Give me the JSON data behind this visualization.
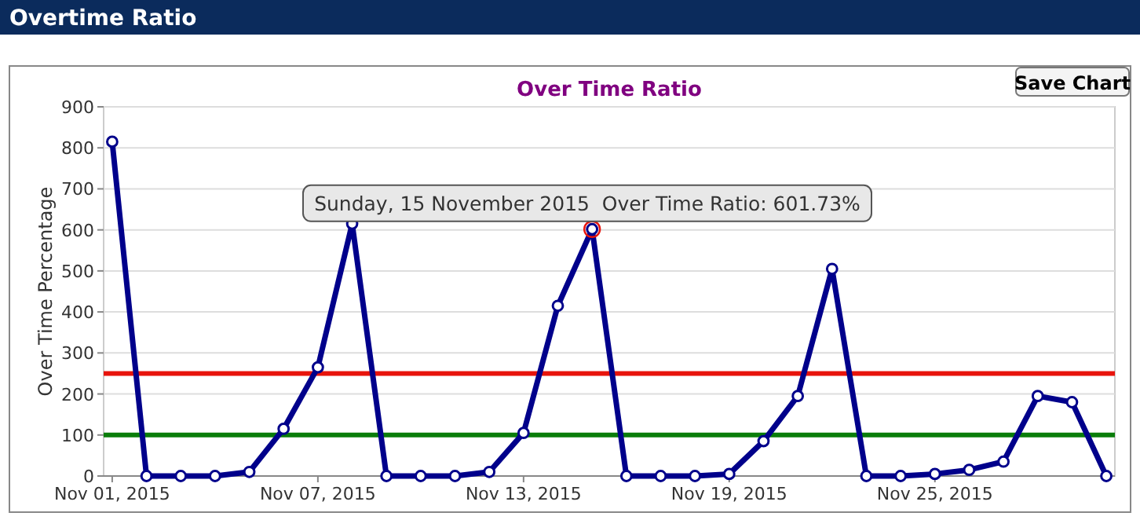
{
  "chart_data": {
    "type": "line",
    "title": "Over Time Ratio",
    "ylabel": "Over Time Percentage",
    "annotations": [
      "Overtime Ratio",
      "Save Chart",
      {
        "text": "Sunday, 15 November 2015  Over Time Ratio: 601.73%",
        "x": "2015-11-15",
        "y": 601.73
      }
    ],
    "x": [
      "2015-11-01",
      "2015-11-02",
      "2015-11-03",
      "2015-11-04",
      "2015-11-05",
      "2015-11-06",
      "2015-11-07",
      "2015-11-08",
      "2015-11-09",
      "2015-11-10",
      "2015-11-11",
      "2015-11-12",
      "2015-11-13",
      "2015-11-14",
      "2015-11-15",
      "2015-11-16",
      "2015-11-17",
      "2015-11-18",
      "2015-11-19",
      "2015-11-20",
      "2015-11-21",
      "2015-11-22",
      "2015-11-23",
      "2015-11-24",
      "2015-11-25",
      "2015-11-26",
      "2015-11-27",
      "2015-11-28",
      "2015-11-29",
      "2015-11-30"
    ],
    "series": [
      {
        "color": "#00008b",
        "values": [
          815,
          0,
          0,
          0,
          10,
          115,
          265,
          615,
          0,
          0,
          0,
          10,
          105,
          415,
          601.73,
          0,
          0,
          0,
          5,
          85,
          195,
          505,
          0,
          0,
          5,
          15,
          35,
          195,
          180,
          0
        ]
      }
    ],
    "xlim": [
      "2015-10-31T18:00",
      "2015-11-30T06:00"
    ],
    "xticks": [
      {
        "value": "2015-11-01",
        "label": "Nov 01, 2015"
      },
      {
        "value": "2015-11-07",
        "label": "Nov 07, 2015"
      },
      {
        "value": "2015-11-13",
        "label": "Nov 13, 2015"
      },
      {
        "value": "2015-11-19",
        "label": "Nov 19, 2015"
      },
      {
        "value": "2015-11-25",
        "label": "Nov 25, 2015"
      }
    ],
    "ylim": [
      0,
      900
    ],
    "yticks": [
      0,
      100,
      200,
      300,
      400,
      500,
      600,
      700,
      800,
      900
    ],
    "ref_lines": [
      {
        "axis": "y",
        "value": 250,
        "color": "#e8140c"
      },
      {
        "axis": "y",
        "value": 100,
        "color": "#0a7d0a"
      }
    ],
    "grid": "y",
    "marker": "circle",
    "line_style": "solid"
  }
}
